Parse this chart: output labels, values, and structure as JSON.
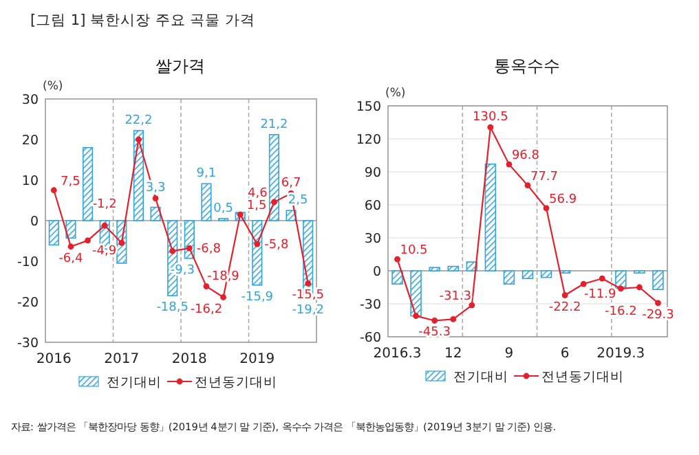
{
  "chart_data": [
    {
      "type": "bar",
      "title": "쌀가격",
      "ylabel": "(%)",
      "annotations": [
        "[그림 1] 북한시장 주요 곡물 가격"
      ],
      "categories": [
        "2016",
        null,
        null,
        null,
        "2017",
        null,
        null,
        null,
        "2018",
        null,
        null,
        null,
        "2019",
        null,
        null,
        null
      ],
      "ylim": [
        -30,
        30
      ],
      "yticks": [
        -30,
        -20,
        -10,
        0,
        10,
        20,
        30
      ],
      "grid": "x",
      "legend": "bottom",
      "series": [
        {
          "name": "전기대비",
          "color": "#31a4dc",
          "values": [
            -6,
            -4.3,
            18,
            -7,
            -10.5,
            22.2,
            3.3,
            -18.5,
            -9.3,
            9.1,
            0.5,
            2,
            -15.9,
            21.2,
            2.5,
            -19.2
          ],
          "value_labels": [
            null,
            null,
            null,
            null,
            null,
            "22,2",
            "3,3",
            "-18,5",
            "-9,3",
            "9,1",
            "0,5",
            null,
            "-15,9",
            "21,2",
            "2,5",
            "-19,2"
          ]
        },
        {
          "name": "전년동기대비",
          "type": "line",
          "color": "#e3202b",
          "marker": "circle",
          "line_style": "solid",
          "values": [
            7.5,
            -6.4,
            -4.9,
            -1.2,
            -5.5,
            20,
            5.5,
            -7.5,
            -6.8,
            -16.2,
            -18.9,
            1.5,
            -5.8,
            4.6,
            6.7,
            -15.5
          ],
          "value_labels": [
            "7,5",
            "-6,4",
            "-4,9",
            "-1,2",
            null,
            null,
            null,
            null,
            "-6,8",
            "-16,2",
            "-18,9",
            "1,5",
            "-5,8",
            "4,6",
            "6,7",
            "-15,5"
          ]
        }
      ]
    },
    {
      "type": "bar",
      "title": "통옥수수",
      "ylabel": "(%)",
      "annotations": [
        "자료: 쌀가격은 「북한장마당 동향」(2019년 4분기 말 기준), 옥수수 가격은 「북한농업동향」(2019년 3분기 말 기준) 인용."
      ],
      "categories": [
        "2016.3",
        null,
        null,
        "12",
        null,
        null,
        "9",
        null,
        null,
        "6",
        null,
        null,
        "2019.3",
        null,
        null
      ],
      "ylim": [
        -60,
        150
      ],
      "yticks": [
        -60,
        -30,
        0,
        30,
        60,
        90,
        120,
        150
      ],
      "grid": true,
      "legend": "bottom",
      "series": [
        {
          "name": "전기대비",
          "color": "#31a4dc",
          "values": [
            -12,
            -41,
            3,
            4,
            8,
            97,
            -12,
            -7,
            -6,
            -2,
            null,
            null,
            -16,
            -2,
            -17
          ]
        },
        {
          "name": "전년동기대비",
          "type": "line",
          "color": "#e3202b",
          "marker": "circle",
          "line_style": "solid",
          "values": [
            10.5,
            -41,
            -45.3,
            -44,
            -31.3,
            130.5,
            96.8,
            77.7,
            56.9,
            -22.2,
            -11.9,
            -7,
            -16.2,
            -15,
            -29.3
          ],
          "value_labels": [
            "10.5",
            null,
            "-45.3",
            null,
            "-31.3",
            "130.5",
            "96.8",
            "77.7",
            "56.9",
            "-22.2",
            "-11.9",
            null,
            "-16.2",
            null,
            "-29.3"
          ]
        }
      ]
    }
  ]
}
